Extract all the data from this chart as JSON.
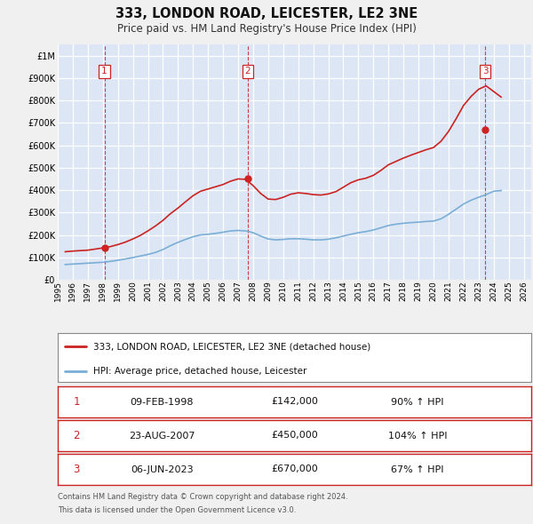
{
  "title": "333, LONDON ROAD, LEICESTER, LE2 3NE",
  "subtitle": "Price paid vs. HM Land Registry's House Price Index (HPI)",
  "xlim": [
    1995.0,
    2026.5
  ],
  "ylim": [
    0,
    1050000
  ],
  "yticks": [
    0,
    100000,
    200000,
    300000,
    400000,
    500000,
    600000,
    700000,
    800000,
    900000,
    1000000
  ],
  "ytick_labels": [
    "£0",
    "£100K",
    "£200K",
    "£300K",
    "£400K",
    "£500K",
    "£600K",
    "£700K",
    "£800K",
    "£900K",
    "£1M"
  ],
  "bg_color": "#dce6f5",
  "fig_bg_color": "#f0f0f0",
  "grid_color": "#ffffff",
  "hpi_color": "#7aaed6",
  "price_color": "#cc2222",
  "transactions": [
    {
      "num": 1,
      "date": "09-FEB-1998",
      "price": 142000,
      "hpi_pct": "90%",
      "x": 1998.11
    },
    {
      "num": 2,
      "date": "23-AUG-2007",
      "price": 450000,
      "hpi_pct": "104%",
      "x": 2007.64
    },
    {
      "num": 3,
      "date": "06-JUN-2023",
      "price": 670000,
      "hpi_pct": "67%",
      "x": 2023.44
    }
  ],
  "legend_label_red": "333, LONDON ROAD, LEICESTER, LE2 3NE (detached house)",
  "legend_label_blue": "HPI: Average price, detached house, Leicester",
  "footer1": "Contains HM Land Registry data © Crown copyright and database right 2024.",
  "footer2": "This data is licensed under the Open Government Licence v3.0.",
  "hpi_data_x": [
    1995.5,
    1996.0,
    1996.5,
    1997.0,
    1997.5,
    1998.0,
    1998.5,
    1999.0,
    1999.5,
    2000.0,
    2000.5,
    2001.0,
    2001.5,
    2002.0,
    2002.5,
    2003.0,
    2003.5,
    2004.0,
    2004.5,
    2005.0,
    2005.5,
    2006.0,
    2006.5,
    2007.0,
    2007.5,
    2008.0,
    2008.5,
    2009.0,
    2009.5,
    2010.0,
    2010.5,
    2011.0,
    2011.5,
    2012.0,
    2012.5,
    2013.0,
    2013.5,
    2014.0,
    2014.5,
    2015.0,
    2015.5,
    2016.0,
    2016.5,
    2017.0,
    2017.5,
    2018.0,
    2018.5,
    2019.0,
    2019.5,
    2020.0,
    2020.5,
    2021.0,
    2021.5,
    2022.0,
    2022.5,
    2023.0,
    2023.5,
    2024.0,
    2024.5
  ],
  "hpi_data_y": [
    68000,
    70000,
    72000,
    74000,
    76000,
    78000,
    82000,
    87000,
    93000,
    99000,
    106000,
    113000,
    122000,
    135000,
    152000,
    167000,
    180000,
    192000,
    200000,
    203000,
    207000,
    212000,
    218000,
    220000,
    218000,
    210000,
    195000,
    182000,
    178000,
    180000,
    183000,
    183000,
    181000,
    178000,
    178000,
    181000,
    187000,
    195000,
    203000,
    210000,
    215000,
    222000,
    232000,
    242000,
    248000,
    252000,
    255000,
    257000,
    260000,
    262000,
    272000,
    292000,
    315000,
    338000,
    355000,
    368000,
    380000,
    395000,
    398000
  ],
  "price_data_x": [
    1995.5,
    1996.0,
    1996.5,
    1997.0,
    1997.5,
    1998.0,
    1998.5,
    1999.0,
    1999.5,
    2000.0,
    2000.5,
    2001.0,
    2001.5,
    2002.0,
    2002.5,
    2003.0,
    2003.5,
    2004.0,
    2004.5,
    2005.0,
    2005.5,
    2006.0,
    2006.5,
    2007.0,
    2007.5,
    2008.0,
    2008.5,
    2009.0,
    2009.5,
    2010.0,
    2010.5,
    2011.0,
    2011.5,
    2012.0,
    2012.5,
    2013.0,
    2013.5,
    2014.0,
    2014.5,
    2015.0,
    2015.5,
    2016.0,
    2016.5,
    2017.0,
    2017.5,
    2018.0,
    2018.5,
    2019.0,
    2019.5,
    2020.0,
    2020.5,
    2021.0,
    2021.5,
    2022.0,
    2022.5,
    2023.0,
    2023.5,
    2024.0,
    2024.5
  ],
  "price_data_y": [
    125000,
    128000,
    130000,
    132000,
    137000,
    142000,
    148000,
    157000,
    168000,
    182000,
    198000,
    218000,
    240000,
    265000,
    295000,
    320000,
    348000,
    375000,
    395000,
    405000,
    415000,
    425000,
    440000,
    450000,
    448000,
    420000,
    385000,
    360000,
    358000,
    368000,
    382000,
    388000,
    385000,
    380000,
    378000,
    383000,
    393000,
    413000,
    433000,
    446000,
    453000,
    466000,
    488000,
    513000,
    528000,
    543000,
    556000,
    568000,
    580000,
    590000,
    618000,
    662000,
    718000,
    778000,
    818000,
    850000,
    865000,
    840000,
    815000
  ]
}
